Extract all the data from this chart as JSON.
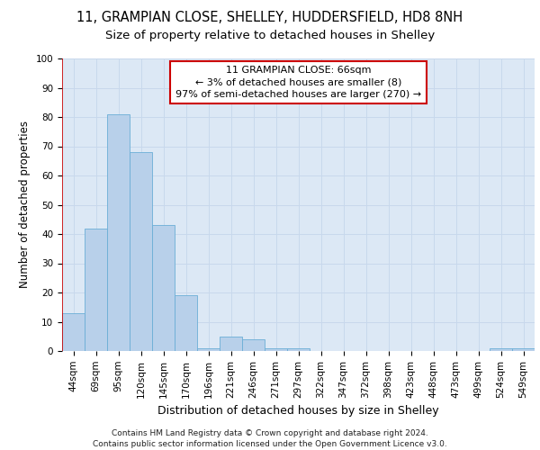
{
  "title1": "11, GRAMPIAN CLOSE, SHELLEY, HUDDERSFIELD, HD8 8NH",
  "title2": "Size of property relative to detached houses in Shelley",
  "xlabel": "Distribution of detached houses by size in Shelley",
  "ylabel": "Number of detached properties",
  "categories": [
    "44sqm",
    "69sqm",
    "95sqm",
    "120sqm",
    "145sqm",
    "170sqm",
    "196sqm",
    "221sqm",
    "246sqm",
    "271sqm",
    "297sqm",
    "322sqm",
    "347sqm",
    "372sqm",
    "398sqm",
    "423sqm",
    "448sqm",
    "473sqm",
    "499sqm",
    "524sqm",
    "549sqm"
  ],
  "values": [
    13,
    42,
    81,
    68,
    43,
    19,
    1,
    5,
    4,
    1,
    1,
    0,
    0,
    0,
    0,
    0,
    0,
    0,
    0,
    1,
    1
  ],
  "bar_color": "#b8d0ea",
  "bar_edge_color": "#6baed6",
  "vline_color": "#cc0000",
  "vline_x": -0.5,
  "annotation_text": "11 GRAMPIAN CLOSE: 66sqm\n← 3% of detached houses are smaller (8)\n97% of semi-detached houses are larger (270) →",
  "annotation_box_facecolor": "#ffffff",
  "annotation_box_edgecolor": "#cc0000",
  "ylim": [
    0,
    100
  ],
  "yticks": [
    0,
    10,
    20,
    30,
    40,
    50,
    60,
    70,
    80,
    90,
    100
  ],
  "grid_color": "#c8d8ec",
  "background_color": "#dce8f5",
  "footer": "Contains HM Land Registry data © Crown copyright and database right 2024.\nContains public sector information licensed under the Open Government Licence v3.0.",
  "title1_fontsize": 10.5,
  "title2_fontsize": 9.5,
  "xlabel_fontsize": 9,
  "ylabel_fontsize": 8.5,
  "tick_fontsize": 7.5,
  "annotation_fontsize": 8,
  "footer_fontsize": 6.5
}
